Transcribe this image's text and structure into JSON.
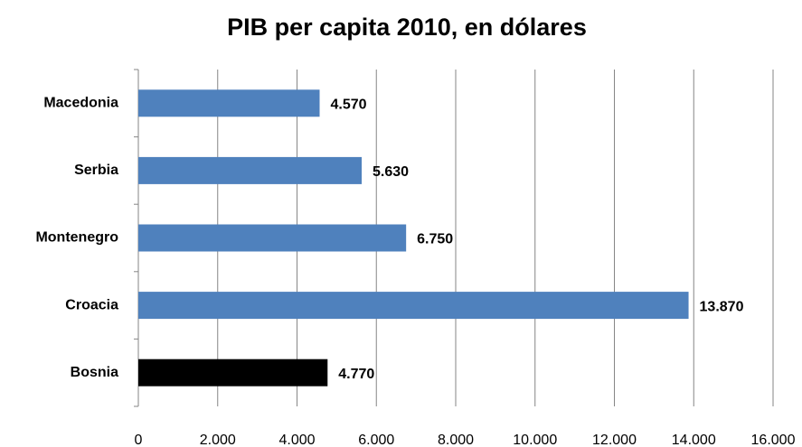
{
  "chart_data": {
    "type": "hbar",
    "title": "PIB per capita 2010, en dólares",
    "categories": [
      "Macedonia",
      "Serbia",
      "Montenegro",
      "Croacia",
      "Bosnia"
    ],
    "values": [
      4570,
      5630,
      6750,
      13870,
      4770
    ],
    "value_labels": [
      "4.570",
      "5.630",
      "6.750",
      "13.870",
      "4.770"
    ],
    "colors": [
      "#4f81bd",
      "#4f81bd",
      "#4f81bd",
      "#4f81bd",
      "#000000"
    ],
    "xlim": [
      0,
      16000
    ],
    "xticks": [
      0,
      {
        "value": 2000,
        "label": "2.000"
      },
      {
        "value": 4000,
        "label": "4.000"
      },
      {
        "value": 6000,
        "label": "6.000"
      },
      {
        "value": 8000,
        "label": "8.000"
      },
      {
        "value": 10000,
        "label": "10.000"
      },
      {
        "value": 12000,
        "label": "12.000"
      },
      {
        "value": 14000,
        "label": "14.000"
      },
      {
        "value": 16000,
        "label": "16.000"
      }
    ],
    "grid": true
  }
}
